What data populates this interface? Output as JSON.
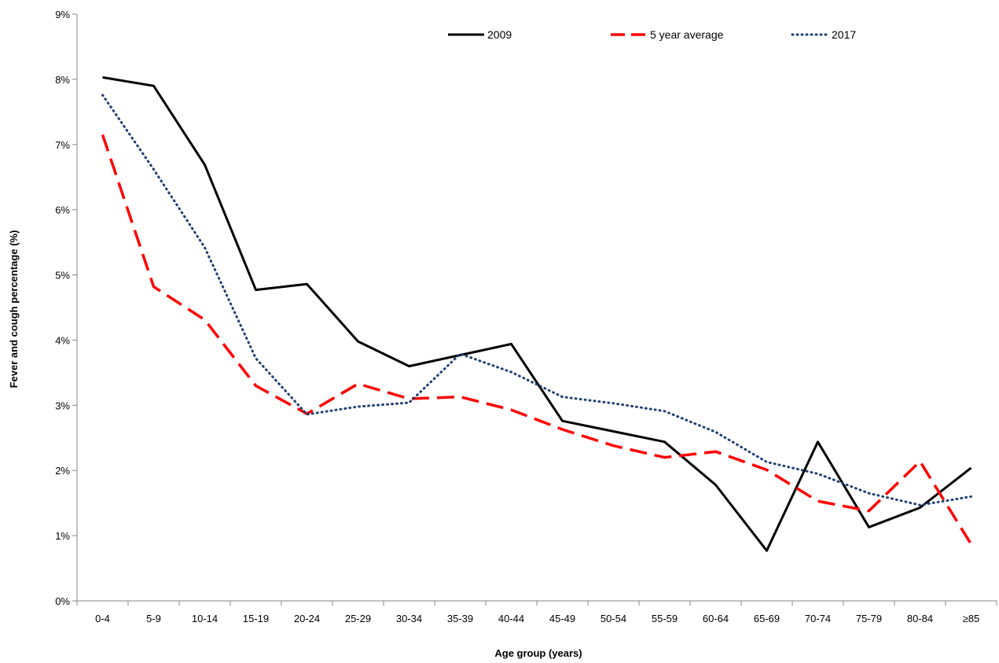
{
  "chart_data": {
    "type": "line",
    "title": "",
    "xlabel": "Age group (years)",
    "ylabel": "Fever and cough percentage (%)",
    "ylim": [
      0,
      9
    ],
    "yticks": [
      0,
      1,
      2,
      3,
      4,
      5,
      6,
      7,
      8,
      9
    ],
    "ytick_labels": [
      "0%",
      "1%",
      "2%",
      "3%",
      "4%",
      "5%",
      "6%",
      "7%",
      "8%",
      "9%"
    ],
    "grid": false,
    "legend_position": "top",
    "categories": [
      "0-4",
      "5-9",
      "10-14",
      "15-19",
      "20-24",
      "25-29",
      "30-34",
      "35-39",
      "40-44",
      "45-49",
      "50-54",
      "55-59",
      "60-64",
      "65-69",
      "70-74",
      "75-79",
      "80-84",
      "≥85"
    ],
    "series": [
      {
        "name": "2009",
        "style": "solid",
        "color": "#000000",
        "values": [
          8.03,
          7.9,
          6.69,
          4.77,
          4.86,
          3.98,
          3.6,
          3.77,
          3.94,
          2.76,
          2.6,
          2.44,
          1.78,
          0.77,
          2.44,
          1.13,
          1.43,
          2.04
        ]
      },
      {
        "name": "5 year average",
        "style": "dashed",
        "color": "#ff0000",
        "values": [
          7.15,
          4.82,
          4.31,
          3.3,
          2.87,
          3.33,
          3.1,
          3.13,
          2.93,
          2.63,
          2.38,
          2.2,
          2.29,
          2.01,
          1.53,
          1.38,
          2.14,
          0.87
        ]
      },
      {
        "name": "2017",
        "style": "dotted",
        "color": "#1f3f73",
        "values": [
          7.76,
          6.62,
          5.42,
          3.72,
          2.86,
          2.98,
          3.04,
          3.79,
          3.51,
          3.13,
          3.03,
          2.91,
          2.59,
          2.13,
          1.95,
          1.65,
          1.47,
          1.6
        ]
      }
    ]
  }
}
